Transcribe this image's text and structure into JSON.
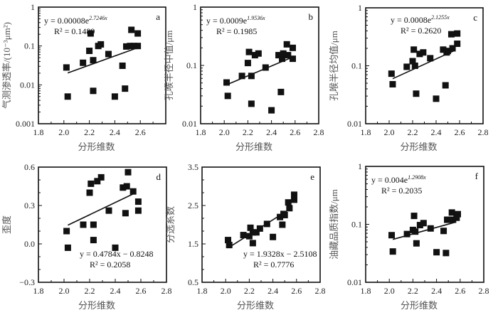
{
  "chart_data": [
    {
      "panel": "a",
      "type": "scatter",
      "yscale": "log",
      "xlim": [
        1.8,
        2.8
      ],
      "ylim": [
        0.001,
        1
      ],
      "xticks": [
        "1.8",
        "2.0",
        "2.2",
        "2.4",
        "2.6"
      ],
      "yticks": [
        "0.001",
        "0.01",
        "0.1",
        "1"
      ],
      "xlabel": "分形维数",
      "ylabel": "气测渗透率/(10⁻³μm²)",
      "equation_base": "y = 0.00008e",
      "equation_exp": "2.7246x",
      "r2": "R² = 0.1489",
      "fit": {
        "kind": "exp",
        "a": 8e-05,
        "b": 2.7246
      },
      "annotation_position": "top-left",
      "x": [
        2.02,
        2.03,
        2.15,
        2.2,
        2.21,
        2.23,
        2.23,
        2.27,
        2.29,
        2.35,
        2.4,
        2.46,
        2.48,
        2.49,
        2.52,
        2.53,
        2.55,
        2.58,
        2.58
      ],
      "y": [
        0.028,
        0.005,
        0.037,
        0.075,
        0.21,
        0.043,
        0.007,
        0.1,
        0.11,
        0.062,
        0.005,
        0.031,
        0.008,
        0.097,
        0.1,
        0.26,
        0.1,
        0.21,
        0.1
      ]
    },
    {
      "panel": "b",
      "type": "scatter",
      "yscale": "log",
      "xlim": [
        1.8,
        2.8
      ],
      "ylim": [
        0.01,
        1
      ],
      "xticks": [
        "1.8",
        "2.0",
        "2.2",
        "2.4",
        "2.6",
        "2.8"
      ],
      "yticks": [
        "0.01",
        "0.1",
        "1"
      ],
      "xlabel": "分形维数",
      "ylabel": "孔喉半径中值/μm",
      "equation_base": "y = 0.0009e",
      "equation_exp": "1.9536x",
      "r2": "R² = 0.1985",
      "fit": {
        "kind": "exp",
        "a": 0.0009,
        "b": 1.9536
      },
      "annotation_position": "top-left",
      "x": [
        2.02,
        2.03,
        2.15,
        2.2,
        2.21,
        2.23,
        2.23,
        2.26,
        2.29,
        2.35,
        2.4,
        2.46,
        2.48,
        2.49,
        2.5,
        2.53,
        2.54,
        2.58,
        2.58
      ],
      "y": [
        0.051,
        0.03,
        0.066,
        0.11,
        0.17,
        0.066,
        0.022,
        0.15,
        0.16,
        0.092,
        0.017,
        0.15,
        0.035,
        0.13,
        0.16,
        0.23,
        0.15,
        0.2,
        0.13
      ]
    },
    {
      "panel": "c",
      "type": "scatter",
      "yscale": "log",
      "xlim": [
        1.8,
        2.8
      ],
      "ylim": [
        0.01,
        1
      ],
      "xticks": [
        "1.8",
        "2.0",
        "2.2",
        "2.4",
        "2.6",
        "2.8"
      ],
      "yticks": [
        "0.01",
        "0.1",
        "1"
      ],
      "xlabel": "分形维数",
      "ylabel": "孔喉半径均值/μm",
      "equation_base": "y = 0.0008e",
      "equation_exp": "2.1255x",
      "r2": "R² = 0.2620",
      "fit": {
        "kind": "exp",
        "a": 0.0008,
        "b": 2.1255
      },
      "annotation_position": "top-center",
      "x": [
        2.02,
        2.03,
        2.15,
        2.2,
        2.21,
        2.22,
        2.23,
        2.26,
        2.29,
        2.35,
        2.4,
        2.46,
        2.48,
        2.49,
        2.5,
        2.53,
        2.54,
        2.58,
        2.58
      ],
      "y": [
        0.073,
        0.048,
        0.096,
        0.12,
        0.19,
        0.1,
        0.033,
        0.16,
        0.17,
        0.135,
        0.027,
        0.19,
        0.046,
        0.17,
        0.18,
        0.35,
        0.2,
        0.36,
        0.24
      ]
    },
    {
      "panel": "d",
      "type": "scatter",
      "yscale": "linear",
      "xlim": [
        1.8,
        2.8
      ],
      "ylim": [
        -0.3,
        0.6
      ],
      "xticks": [
        "1.8",
        "2.0",
        "2.2",
        "2.4",
        "2.6",
        "2.8"
      ],
      "yticks": [
        "−0.3",
        "0.0",
        "0.3",
        "0.6"
      ],
      "xlabel": "分形维数",
      "ylabel": "歪度",
      "equation_base": "y = 0.4784x − 0.8248",
      "equation_exp": "",
      "r2": "R² = 0.2058",
      "fit": {
        "kind": "linear",
        "a": 0.4784,
        "b": -0.8248
      },
      "annotation_position": "bottom-right",
      "x": [
        2.02,
        2.03,
        2.15,
        2.2,
        2.21,
        2.23,
        2.23,
        2.26,
        2.29,
        2.35,
        2.4,
        2.46,
        2.48,
        2.49,
        2.5,
        2.54,
        2.58,
        2.58
      ],
      "y": [
        0.1,
        -0.03,
        0.15,
        0.4,
        0.47,
        0.15,
        0.03,
        0.49,
        0.52,
        0.26,
        -0.03,
        0.44,
        0.24,
        0.45,
        0.56,
        0.41,
        0.33,
        0.26
      ]
    },
    {
      "panel": "e",
      "type": "scatter",
      "yscale": "linear",
      "xlim": [
        1.8,
        2.8
      ],
      "ylim": [
        0.5,
        3.5
      ],
      "xticks": [
        "1.8",
        "2.0",
        "2.2",
        "2.4",
        "2.6",
        "2.8"
      ],
      "yticks": [
        "0.5",
        "1.5",
        "2.5",
        "3.5"
      ],
      "xlabel": "分形维数",
      "ylabel": "分选系数",
      "equation_base": "y = 1.9328x − 2.5108",
      "equation_exp": "",
      "r2": "R² = 0.7776",
      "fit": {
        "kind": "linear",
        "a": 1.9328,
        "b": -2.5108
      },
      "annotation_position": "bottom-right",
      "x": [
        2.02,
        2.03,
        2.15,
        2.2,
        2.21,
        2.23,
        2.23,
        2.26,
        2.29,
        2.35,
        2.4,
        2.46,
        2.48,
        2.49,
        2.5,
        2.53,
        2.54,
        2.58,
        2.58
      ],
      "y": [
        1.6,
        1.47,
        1.73,
        1.7,
        1.92,
        1.52,
        1.8,
        1.8,
        1.9,
        2.02,
        1.68,
        2.2,
        2.0,
        2.28,
        2.25,
        2.58,
        2.43,
        2.65,
        2.78
      ]
    },
    {
      "panel": "f",
      "type": "scatter",
      "yscale": "log",
      "xlim": [
        1.8,
        2.8
      ],
      "ylim": [
        0.01,
        1
      ],
      "xticks": [
        "1.8",
        "2.0",
        "2.2",
        "2.4",
        "2.6",
        "2.8"
      ],
      "yticks": [
        "0.01",
        "0.1",
        "1"
      ],
      "xlabel": "分形维数",
      "ylabel": "油藏品质指数/μm",
      "equation_base": "y = 0.004e",
      "equation_exp": "1.2908x",
      "r2": "R² = 0.2035",
      "fit": {
        "kind": "exp",
        "a": 0.004,
        "b": 1.2908
      },
      "annotation_position": "top-left",
      "x": [
        2.02,
        2.03,
        2.15,
        2.2,
        2.21,
        2.22,
        2.23,
        2.26,
        2.29,
        2.35,
        2.4,
        2.46,
        2.48,
        2.49,
        2.5,
        2.53,
        2.54,
        2.58,
        2.57
      ],
      "y": [
        0.065,
        0.034,
        0.068,
        0.08,
        0.14,
        0.075,
        0.047,
        0.097,
        0.105,
        0.085,
        0.033,
        0.077,
        0.032,
        0.12,
        0.12,
        0.16,
        0.12,
        0.15,
        0.13
      ]
    }
  ]
}
